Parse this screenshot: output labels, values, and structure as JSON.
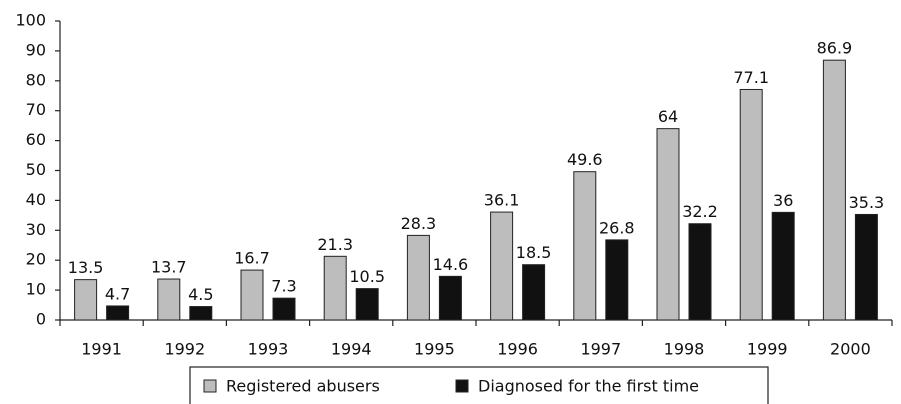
{
  "chart_data": {
    "type": "bar",
    "categories": [
      "1991",
      "1992",
      "1993",
      "1994",
      "1995",
      "1996",
      "1997",
      "1998",
      "1999",
      "2000"
    ],
    "series": [
      {
        "name": "Registered abusers",
        "color": "#bdbdbd",
        "values": [
          13.5,
          13.7,
          16.7,
          21.3,
          28.3,
          36.1,
          49.6,
          64,
          77.1,
          86.9
        ]
      },
      {
        "name": "Diagnosed for the first time",
        "color": "#111111",
        "values": [
          4.7,
          4.5,
          7.3,
          10.5,
          14.6,
          18.5,
          26.8,
          32.2,
          36,
          35.3
        ]
      }
    ],
    "ylim": [
      0,
      100
    ],
    "yticks": [
      0,
      10,
      20,
      30,
      40,
      50,
      60,
      70,
      80,
      90,
      100
    ],
    "legend": "bottom"
  }
}
